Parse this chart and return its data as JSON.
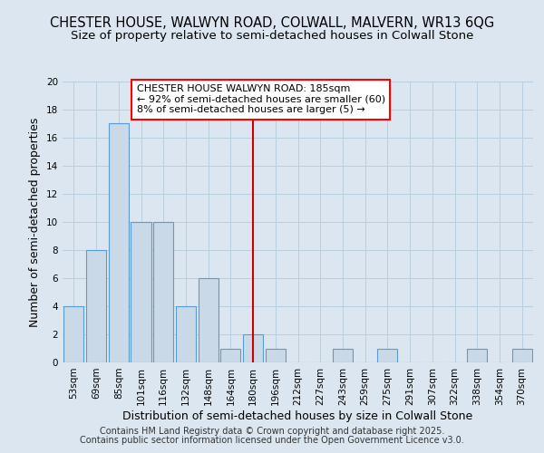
{
  "title_line1": "CHESTER HOUSE, WALWYN ROAD, COLWALL, MALVERN, WR13 6QG",
  "title_line2": "Size of property relative to semi-detached houses in Colwall Stone",
  "xlabel": "Distribution of semi-detached houses by size in Colwall Stone",
  "ylabel": "Number of semi-detached properties",
  "categories": [
    "53sqm",
    "69sqm",
    "85sqm",
    "101sqm",
    "116sqm",
    "132sqm",
    "148sqm",
    "164sqm",
    "180sqm",
    "196sqm",
    "212sqm",
    "227sqm",
    "243sqm",
    "259sqm",
    "275sqm",
    "291sqm",
    "307sqm",
    "322sqm",
    "338sqm",
    "354sqm",
    "370sqm"
  ],
  "values": [
    4,
    8,
    17,
    10,
    10,
    4,
    6,
    1,
    2,
    1,
    0,
    0,
    1,
    0,
    1,
    0,
    0,
    0,
    1,
    0,
    1
  ],
  "bar_color": "#c9d9e8",
  "bar_edge_color": "#5b9bd5",
  "reference_line_x": 8,
  "annotation_text": "CHESTER HOUSE WALWYN ROAD: 185sqm\n← 92% of semi-detached houses are smaller (60)\n8% of semi-detached houses are larger (5) →",
  "annotation_box_color": "white",
  "annotation_box_edge": "red",
  "ylim": [
    0,
    20
  ],
  "yticks": [
    0,
    2,
    4,
    6,
    8,
    10,
    12,
    14,
    16,
    18,
    20
  ],
  "background_color": "#dce6f0",
  "plot_background": "#dce6f0",
  "footer_line1": "Contains HM Land Registry data © Crown copyright and database right 2025.",
  "footer_line2": "Contains public sector information licensed under the Open Government Licence v3.0.",
  "grid_color": "#b8cfe0",
  "ref_line_color": "#cc0000",
  "title_fontsize": 10.5,
  "subtitle_fontsize": 9.5,
  "axis_label_fontsize": 9,
  "tick_fontsize": 7.5,
  "annotation_fontsize": 8,
  "footer_fontsize": 7
}
